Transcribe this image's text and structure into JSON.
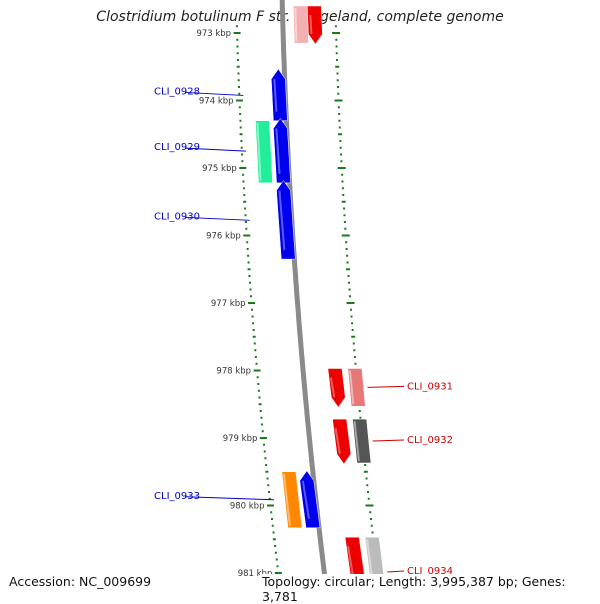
{
  "title": "Clostridium botulinum F str. Langeland, complete genome",
  "footer": {
    "accession": "Accession: NC_009699",
    "summary": "Topology: circular; Length: 3,995,387 bp; Genes: 3,781"
  },
  "colors": {
    "background": "#ffffff",
    "backbone": "#8a8a8a",
    "tick": "#1a7a1a",
    "forward_label": "#0000cc",
    "reverse_label": "#cc0000",
    "blue_gene": "#0000ee",
    "red_gene": "#ee0000"
  },
  "axis": {
    "unit": "kbp",
    "ticks": [
      {
        "kbp": 973,
        "label": "973 kbp"
      },
      {
        "kbp": 974,
        "label": "974 kbp"
      },
      {
        "kbp": 975,
        "label": "975 kbp"
      },
      {
        "kbp": 976,
        "label": "976 kbp"
      },
      {
        "kbp": 977,
        "label": "977 kbp"
      },
      {
        "kbp": 978,
        "label": "978 kbp"
      },
      {
        "kbp": 979,
        "label": "979 kbp"
      },
      {
        "kbp": 980,
        "label": "980 kbp"
      },
      {
        "kbp": 981,
        "label": "981 kbp"
      }
    ]
  },
  "genes": [
    {
      "id": "CLI_0928",
      "label": "CLI_0928",
      "strand": "+",
      "start_kbp": 973.55,
      "end_kbp": 974.3,
      "color": "#0000ee"
    },
    {
      "id": "CLI_0929",
      "label": "CLI_0929",
      "strand": "+",
      "start_kbp": 974.28,
      "end_kbp": 975.22,
      "color": "#0000ee"
    },
    {
      "id": "CLI_0930",
      "label": "CLI_0930",
      "strand": "+",
      "start_kbp": 975.2,
      "end_kbp": 976.35,
      "color": "#0000ee"
    },
    {
      "id": "CLI_0933",
      "label": "CLI_0933",
      "strand": "+",
      "start_kbp": 979.5,
      "end_kbp": 980.33,
      "color": "#0000ee"
    },
    {
      "id": "CLI_0931",
      "label": "CLI_0931",
      "strand": "-",
      "start_kbp": 977.97,
      "end_kbp": 978.53,
      "color": "#ee0000"
    },
    {
      "id": "CLI_0932",
      "label": "CLI_0932",
      "strand": "-",
      "start_kbp": 978.72,
      "end_kbp": 979.37,
      "color": "#ee0000"
    },
    {
      "id": "CLI_0934",
      "label": "CLI_0934",
      "strand": "-",
      "start_kbp": 980.47,
      "end_kbp": 981.5,
      "color": "#ee0000"
    },
    {
      "id": "top-partial",
      "label": "",
      "strand": "-",
      "start_kbp": 972.6,
      "end_kbp": 973.15,
      "color": "#ee0000"
    }
  ],
  "features": [
    {
      "id": "feat-0929",
      "track": "outer-left",
      "start_kbp": 974.3,
      "end_kbp": 975.22,
      "color": "#22ee99"
    },
    {
      "id": "feat-0933",
      "track": "outer-left",
      "start_kbp": 979.5,
      "end_kbp": 980.33,
      "color": "#ff8800"
    },
    {
      "id": "feat-0931",
      "track": "outer-right",
      "start_kbp": 977.97,
      "end_kbp": 978.53,
      "color": "#e87878"
    },
    {
      "id": "feat-0932",
      "track": "outer-right",
      "start_kbp": 978.72,
      "end_kbp": 979.37,
      "color": "#555555"
    },
    {
      "id": "feat-0934",
      "track": "outer-right",
      "start_kbp": 980.47,
      "end_kbp": 981.5,
      "color": "#bbbbbb"
    },
    {
      "id": "feat-top",
      "track": "inner-right",
      "start_kbp": 972.6,
      "end_kbp": 973.15,
      "color": "#f4b0b0"
    }
  ]
}
